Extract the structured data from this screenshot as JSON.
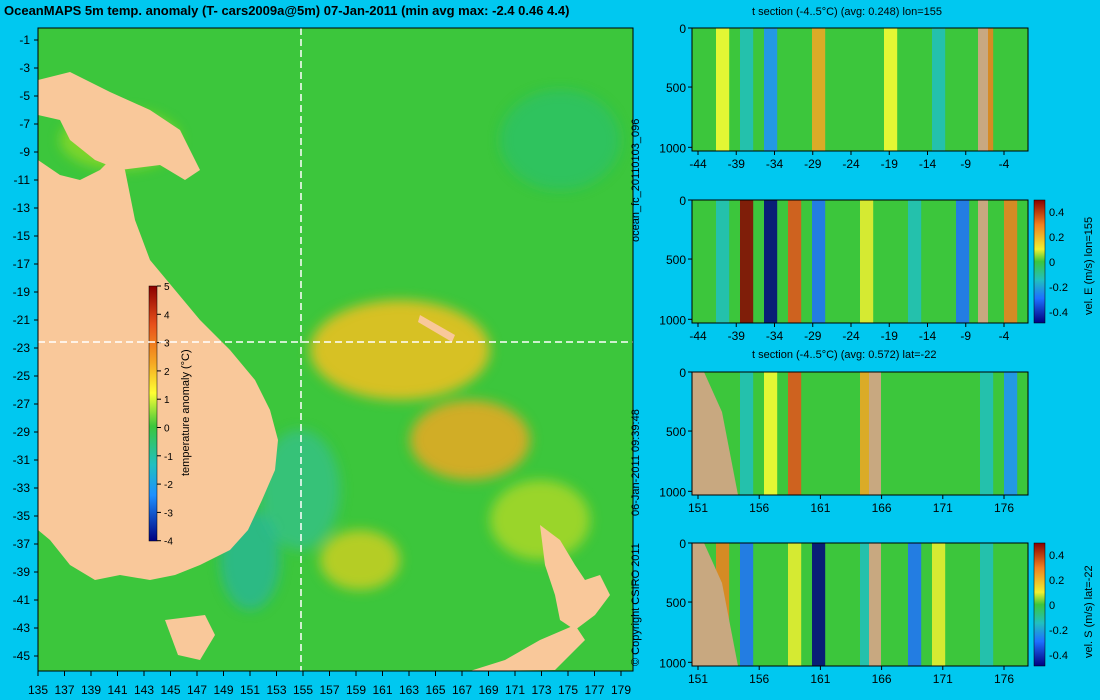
{
  "title": "OceanMAPS 5m temp. anomaly (T- cars2009a@5m) 07-Jan-2011 (min avg max: -2.4 0.46 4.4)",
  "map": {
    "lat_ticks": [
      "-1",
      "-3",
      "-5",
      "-7",
      "-9",
      "-11",
      "-13",
      "-15",
      "-17",
      "-19",
      "-21",
      "-23",
      "-25",
      "-27",
      "-29",
      "-31",
      "-33",
      "-35",
      "-37",
      "-39",
      "-41",
      "-43",
      "-45"
    ],
    "lon_ticks": [
      "135",
      "137",
      "139",
      "141",
      "143",
      "145",
      "147",
      "149",
      "151",
      "153",
      "155",
      "157",
      "159",
      "161",
      "163",
      "165",
      "167",
      "169",
      "171",
      "173",
      "175",
      "177",
      "179"
    ],
    "crosshair": {
      "lon": 155,
      "lat": -22
    },
    "colorbar": {
      "label": "temperature anomaly (°C)",
      "ticks": [
        "5",
        "4",
        "3",
        "2",
        "1",
        "0",
        "-1",
        "-2",
        "-3",
        "-4"
      ]
    },
    "colors": {
      "land": "#f9c89a",
      "ocean_base": "#3cc63c",
      "warm": "#f6a623",
      "cool": "#1e90ff"
    }
  },
  "side_labels": {
    "run_id": "ocean_fc_20110103_096",
    "timestamp": "06-Jan-2011 09:39:48",
    "copyright": "© Copyright CSIRO 2011"
  },
  "panels": [
    {
      "title": "t section (-4..5°C) (avg: 0.248) lon=155",
      "x_ticks": [
        "-44",
        "-39",
        "-34",
        "-29",
        "-24",
        "-19",
        "-14",
        "-9",
        "-4"
      ],
      "y_ticks": [
        "0",
        "500",
        "1000"
      ]
    },
    {
      "title": "",
      "x_ticks": [
        "-44",
        "-39",
        "-34",
        "-29",
        "-24",
        "-19",
        "-14",
        "-9",
        "-4"
      ],
      "y_ticks": [
        "0",
        "500",
        "1000"
      ],
      "colorbar": {
        "label": "vel. E (m/s) lon=155",
        "ticks": [
          "0.4",
          "0.2",
          "0",
          "-0.2",
          "-0.4"
        ]
      }
    },
    {
      "title": "t section (-4..5°C) (avg: 0.572) lat=-22",
      "x_ticks": [
        "151",
        "156",
        "161",
        "166",
        "171",
        "176"
      ],
      "y_ticks": [
        "0",
        "500",
        "1000"
      ]
    },
    {
      "title": "",
      "x_ticks": [
        "151",
        "156",
        "161",
        "166",
        "171",
        "176"
      ],
      "y_ticks": [
        "0",
        "500",
        "1000"
      ],
      "colorbar": {
        "label": "vel. S (m/s) lat=-22",
        "ticks": [
          "0.4",
          "0.2",
          "0",
          "-0.2",
          "-0.4"
        ]
      }
    }
  ]
}
